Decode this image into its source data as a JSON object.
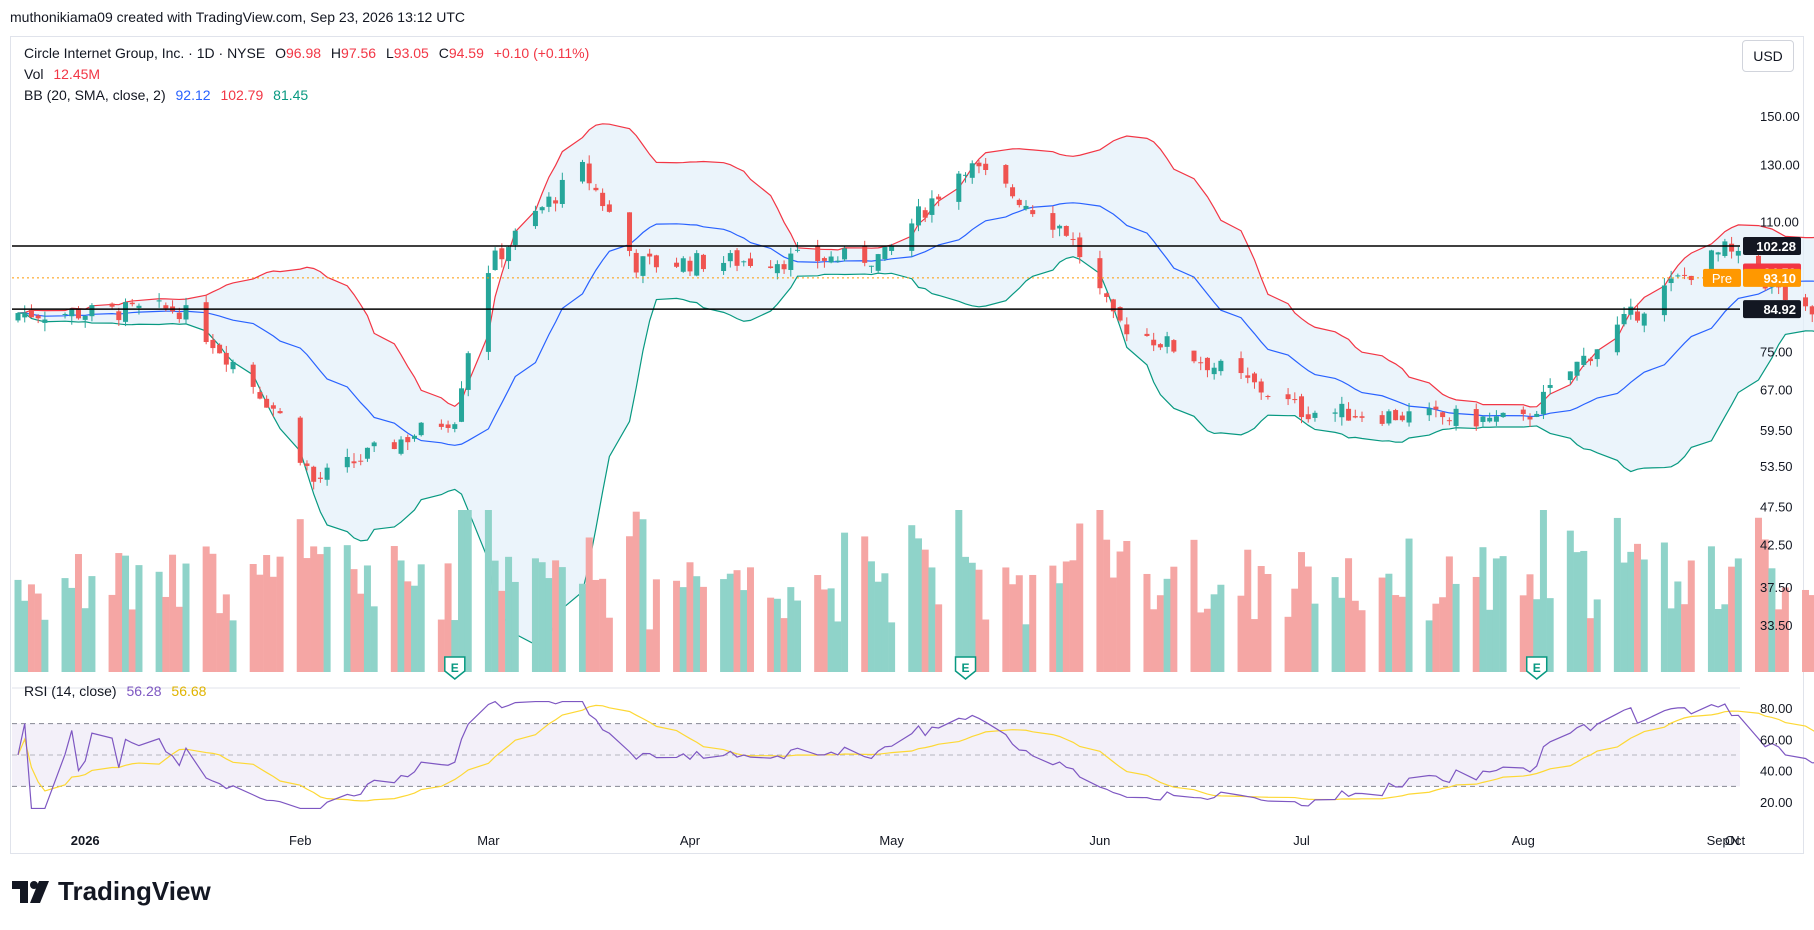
{
  "watermark_header": "muthonikiama09 created with TradingView.com, Sep 23, 2026 13:12 UTC",
  "symbol": {
    "name": "Circle Internet Group, Inc. · 1D · NYSE",
    "o_label": "O",
    "o": "96.98",
    "h_label": "H",
    "h": "97.56",
    "l_label": "L",
    "l": "93.05",
    "c_label": "C",
    "c": "94.59",
    "change": "+0.10 (+0.11%)"
  },
  "volume": {
    "label": "Vol",
    "value": "12.45M"
  },
  "bb": {
    "label": "BB (20, SMA, close, 2)",
    "basis": "92.12",
    "upper": "102.79",
    "lower": "81.45"
  },
  "rsi": {
    "label": "RSI (14, close)",
    "value": "56.28",
    "ma": "56.68"
  },
  "currency_button": "USD",
  "price_axis_ticks": [
    "150.00",
    "130.00",
    "110.00",
    "75.00",
    "67.00",
    "59.50",
    "53.50",
    "47.50",
    "42.50",
    "37.50",
    "33.50"
  ],
  "rsi_axis_ticks": [
    "80.00",
    "60.00",
    "40.00",
    "20.00"
  ],
  "price_badges": {
    "upper_level": "102.28",
    "last": "94.59",
    "pre_label": "Pre",
    "pre": "93.10",
    "lower_level": "84.92"
  },
  "earnings_marker": "E",
  "time_labels": [
    "2026",
    "Feb",
    "Mar",
    "Apr",
    "May",
    "Jun",
    "Jul",
    "Aug",
    "Sep",
    "Oct",
    "N"
  ],
  "brand": "TradingView",
  "colors": {
    "up": "#26a69a",
    "down": "#ef5350",
    "bb_basis": "#2962ff",
    "bb_upper": "#f23645",
    "bb_lower": "#089981",
    "bb_fill": "#e3effa",
    "rsi_line": "#7e57c2",
    "rsi_ma": "#fdd835",
    "pre_badge": "#ff9800",
    "level_line": "#000000"
  },
  "chart_data": [
    {
      "type": "candlestick",
      "title": "Circle Internet Group, Inc. · 1D · NYSE",
      "scale": "log",
      "ylim": [
        31,
        160
      ],
      "horizontal_levels": [
        102.28,
        84.92
      ],
      "last_close": 94.59,
      "premarket": 93.1,
      "ohlc_anchors": [
        {
          "x": "Jan 2 2026",
          "c": 84
        },
        {
          "x": "Jan 15 2026",
          "c": 85
        },
        {
          "x": "Jan 30 2026",
          "c": 62
        },
        {
          "x": "Feb 4 2026",
          "c": 51
        },
        {
          "x": "Feb 25 2026",
          "c": 62
        },
        {
          "x": "Mar 2 2026",
          "c": 96
        },
        {
          "x": "Mar 16 2026",
          "c": 128
        },
        {
          "x": "Mar 24 2026",
          "c": 97
        },
        {
          "x": "Apr 9 2026",
          "c": 98
        },
        {
          "x": "Apr 30 2026",
          "c": 99
        },
        {
          "x": "May 12 2026",
          "c": 130
        },
        {
          "x": "May 27 2026",
          "c": 107
        },
        {
          "x": "Jun 3 2026",
          "c": 82
        },
        {
          "x": "Jul 1 2026",
          "c": 63
        },
        {
          "x": "Aug 3 2026",
          "c": 61
        },
        {
          "x": "Aug 24 2026",
          "c": 90
        },
        {
          "x": "Sep 2 2026",
          "c": 101
        },
        {
          "x": "Sep 15 2026",
          "c": 82
        },
        {
          "x": "Sep 22 2026",
          "o": 96.98,
          "h": 97.56,
          "l": 93.05,
          "c": 94.59
        }
      ],
      "bollinger": {
        "period": 20,
        "basis_last": 92.12,
        "upper_last": 102.79,
        "lower_last": 81.45
      }
    },
    {
      "type": "bar",
      "title": "Vol",
      "last_value": "12.45M"
    },
    {
      "type": "line",
      "title": "RSI (14, close)",
      "ylim": [
        15,
        85
      ],
      "bands": [
        70,
        50,
        30
      ],
      "last_rsi": 56.28,
      "last_ma": 56.68
    }
  ]
}
